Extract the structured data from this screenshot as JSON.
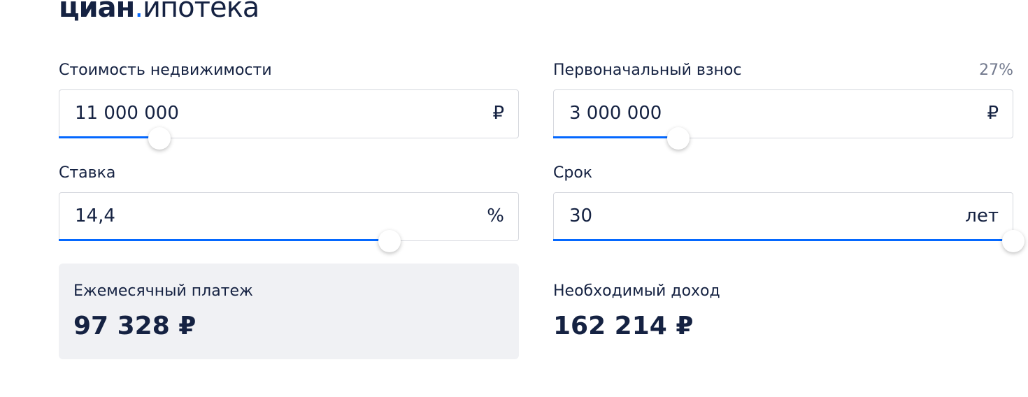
{
  "header": {
    "logo_main": "циан",
    "logo_dot": ".",
    "logo_sub": "ипотека"
  },
  "fields": [
    {
      "label": "Стоимость недвижимости",
      "value": "11 000 000",
      "unit": "₽"
    },
    {
      "label": "Первоначальный взнос",
      "value": "3 000 000",
      "unit": "₽",
      "percent": "27%"
    },
    {
      "label": "Ставка",
      "value": "14,4",
      "unit": "%"
    },
    {
      "label": "Срок",
      "value": "30",
      "unit": "лет"
    }
  ],
  "results": [
    {
      "label": "Ежемесячный платеж",
      "value": "97 328 ₽"
    },
    {
      "label": "Необходимый доход",
      "value": "162 214 ₽"
    }
  ]
}
